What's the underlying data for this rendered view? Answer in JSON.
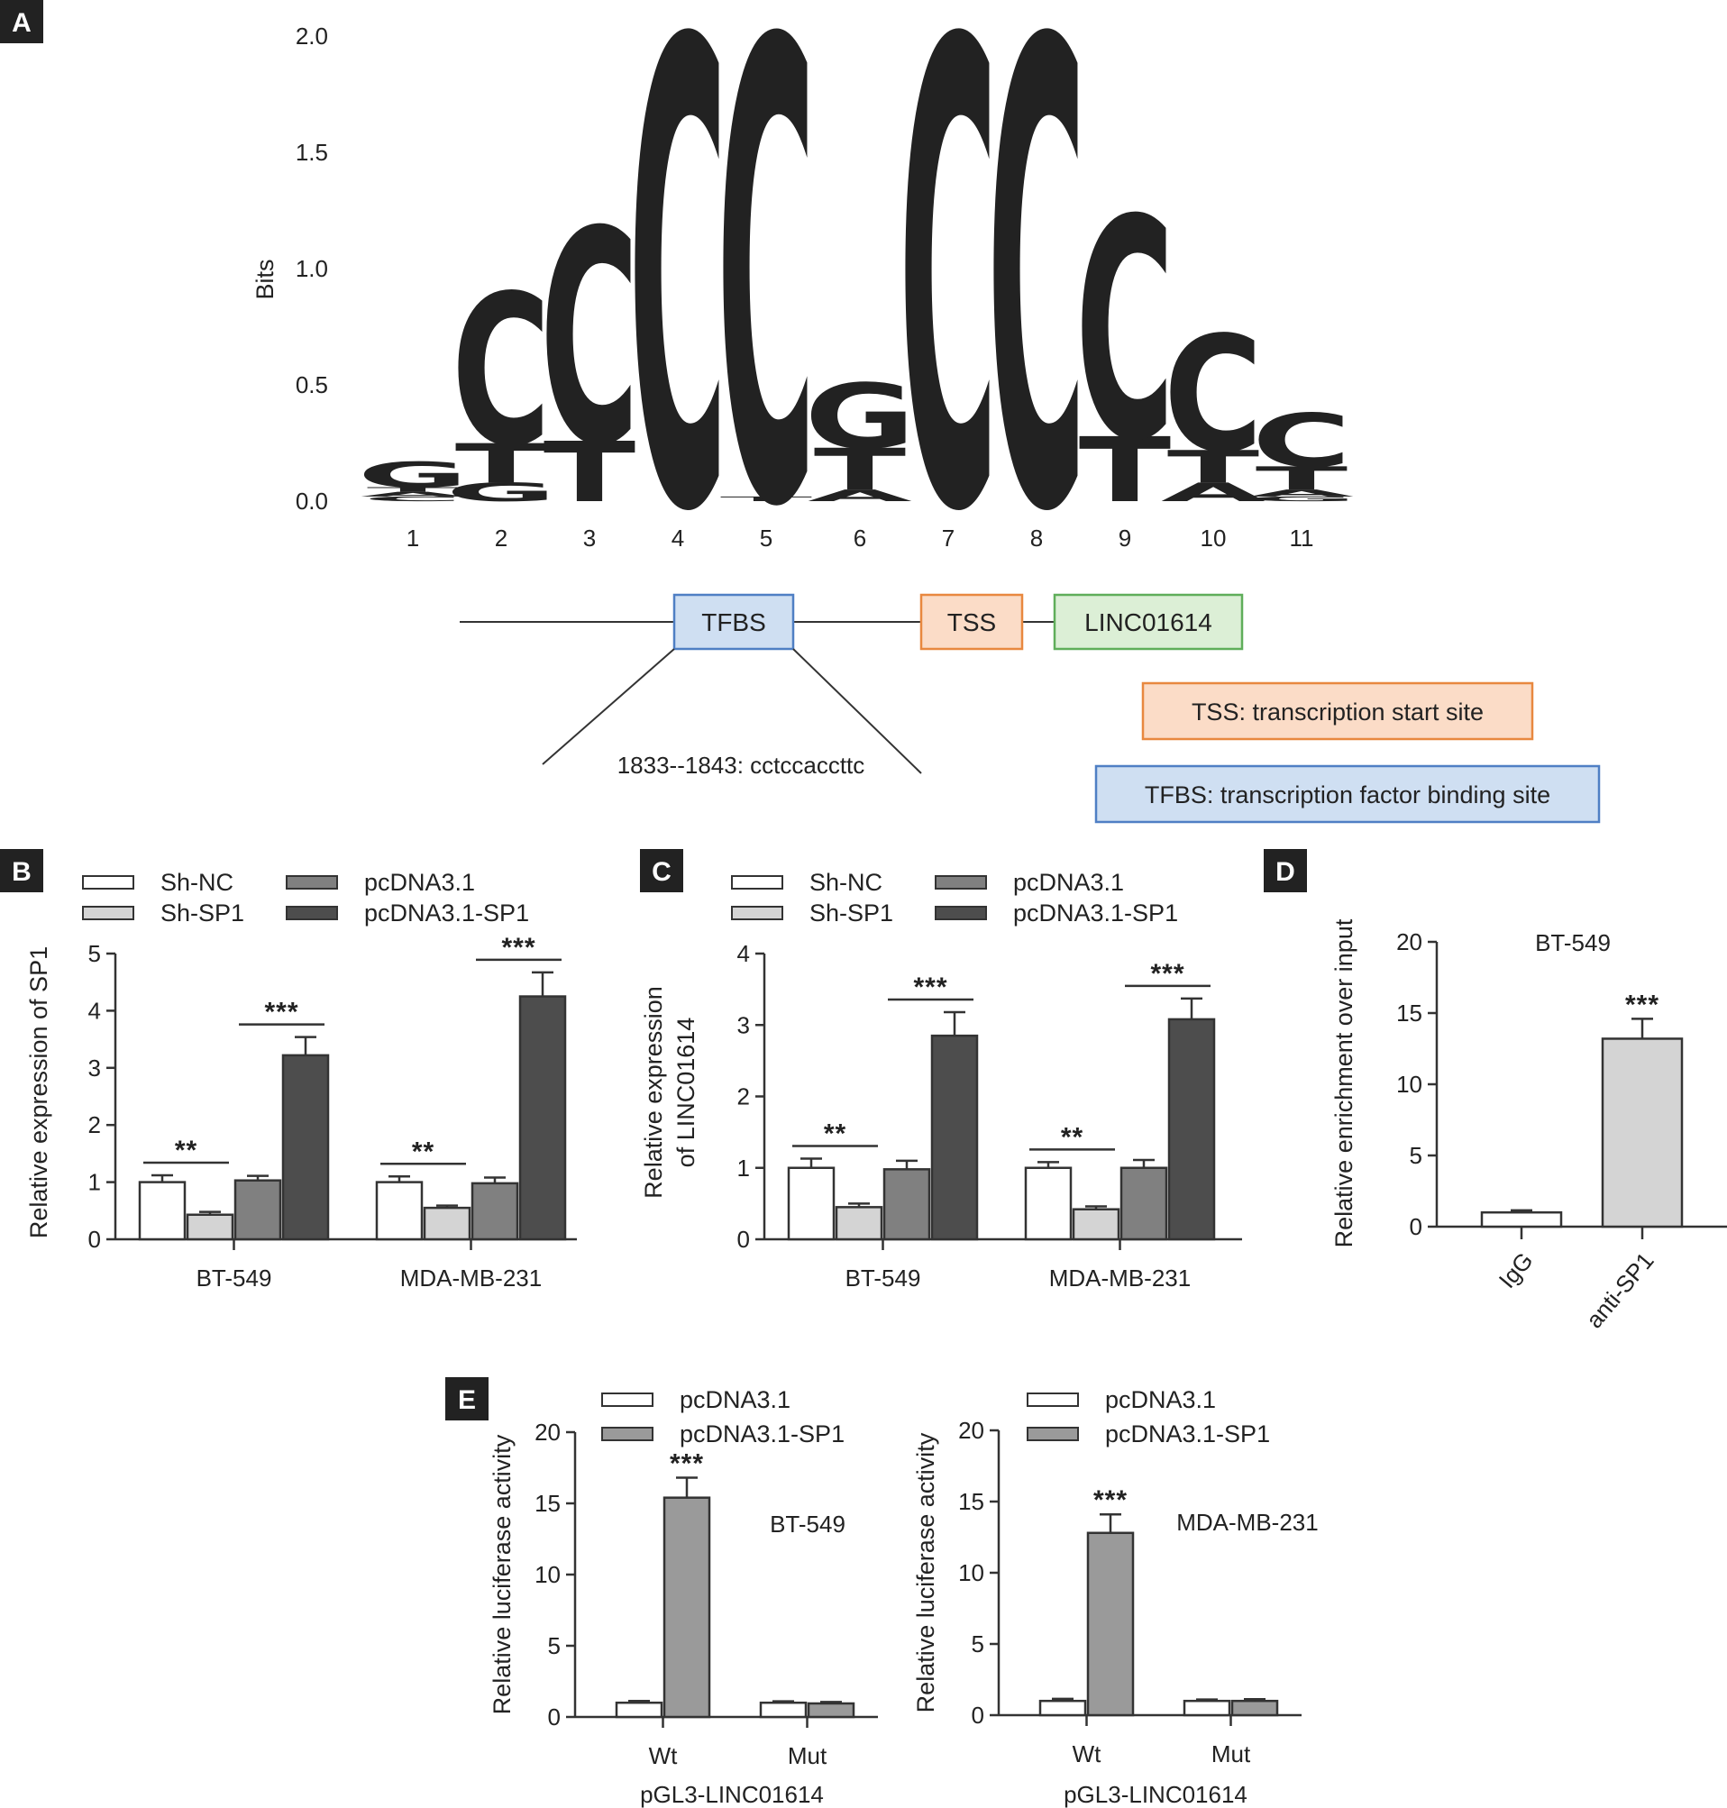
{
  "panels": {
    "A": {
      "label": "A"
    },
    "B": {
      "label": "B"
    },
    "C": {
      "label": "C"
    },
    "D": {
      "label": "D"
    },
    "E": {
      "label": "E"
    }
  },
  "motif": {
    "ylabel": "Bits",
    "yticks": [
      "0.0",
      "0.5",
      "1.0",
      "1.5",
      "2.0"
    ],
    "ylim": [
      0,
      2
    ],
    "positions": [
      "1",
      "2",
      "3",
      "4",
      "5",
      "6",
      "7",
      "8",
      "9",
      "10",
      "11"
    ],
    "colors": {
      "C": "#2f6fb5",
      "G": "#f2a531",
      "T": "#d9232e",
      "A": "#3aa66a"
    },
    "columns": [
      [
        {
          "base": "C",
          "bits": 0.02
        },
        {
          "base": "A",
          "bits": 0.02
        },
        {
          "base": "T",
          "bits": 0.02
        },
        {
          "base": "G",
          "bits": 0.11
        }
      ],
      [
        {
          "base": "G",
          "bits": 0.08
        },
        {
          "base": "T",
          "bits": 0.17
        },
        {
          "base": "C",
          "bits": 0.65
        }
      ],
      [
        {
          "base": "T",
          "bits": 0.26
        },
        {
          "base": "C",
          "bits": 0.92
        }
      ],
      [
        {
          "base": "C",
          "bits": 2.0
        }
      ],
      [
        {
          "base": "T",
          "bits": 0.02
        },
        {
          "base": "C",
          "bits": 1.98
        }
      ],
      [
        {
          "base": "A",
          "bits": 0.05
        },
        {
          "base": "T",
          "bits": 0.18
        },
        {
          "base": "G",
          "bits": 0.28
        }
      ],
      [
        {
          "base": "C",
          "bits": 2.0
        }
      ],
      [
        {
          "base": "C",
          "bits": 2.0
        }
      ],
      [
        {
          "base": "T",
          "bits": 0.28
        },
        {
          "base": "C",
          "bits": 0.95
        }
      ],
      [
        {
          "base": "A",
          "bits": 0.08
        },
        {
          "base": "T",
          "bits": 0.14
        },
        {
          "base": "C",
          "bits": 0.5
        }
      ],
      [
        {
          "base": "G",
          "bits": 0.02
        },
        {
          "base": "A",
          "bits": 0.03
        },
        {
          "base": "T",
          "bits": 0.1
        },
        {
          "base": "C",
          "bits": 0.23
        }
      ]
    ]
  },
  "diagram": {
    "tfbs": "TFBS",
    "tss": "TSS",
    "gene": "LINC01614",
    "site": "1833--1843: cctccaccttc",
    "legend_tss": "TSS:  transcription  start site",
    "legend_tfbs": "TFBS: transcription  factor binding  site",
    "colors": {
      "tfbs_fill": "#cfdff2",
      "tfbs_stroke": "#4f7fc4",
      "tss_fill": "#fbdcc7",
      "tss_stroke": "#e8883f",
      "gene_fill": "#dcefd6",
      "gene_stroke": "#5fae5a"
    }
  },
  "chart_data": [
    {
      "id": "B",
      "type": "bar",
      "ylabel": "Relative expression of SP1",
      "ylim": [
        0,
        5
      ],
      "yticks": [
        "0",
        "1",
        "2",
        "3",
        "4",
        "5"
      ],
      "legend": [
        "Sh-NC",
        "Sh-SP1",
        "pcDNA3.1",
        "pcDNA3.1-SP1"
      ],
      "colors": [
        "#ffffff",
        "#d4d4d4",
        "#808080",
        "#4d4d4d"
      ],
      "groups": [
        {
          "name": "BT-549",
          "values": [
            1.0,
            0.43,
            1.03,
            3.22
          ],
          "errors": [
            0.12,
            0.05,
            0.08,
            0.32
          ]
        },
        {
          "name": "MDA-MB-231",
          "values": [
            1.0,
            0.55,
            0.98,
            4.25
          ],
          "errors": [
            0.1,
            0.04,
            0.1,
            0.42
          ]
        }
      ],
      "significance": [
        {
          "group": 0,
          "pair": [
            0,
            1
          ],
          "label": "**"
        },
        {
          "group": 0,
          "pair": [
            2,
            3
          ],
          "label": "***"
        },
        {
          "group": 1,
          "pair": [
            0,
            1
          ],
          "label": "**"
        },
        {
          "group": 1,
          "pair": [
            2,
            3
          ],
          "label": "***"
        }
      ]
    },
    {
      "id": "C",
      "type": "bar",
      "ylabel": "Relative expression",
      "ylabel2": "of LINC01614",
      "ylim": [
        0,
        4
      ],
      "yticks": [
        "0",
        "1",
        "2",
        "3",
        "4"
      ],
      "legend": [
        "Sh-NC",
        "Sh-SP1",
        "pcDNA3.1",
        "pcDNA3.1-SP1"
      ],
      "colors": [
        "#ffffff",
        "#d4d4d4",
        "#808080",
        "#4d4d4d"
      ],
      "groups": [
        {
          "name": "BT-549",
          "values": [
            1.0,
            0.45,
            0.98,
            2.85
          ],
          "errors": [
            0.13,
            0.05,
            0.12,
            0.33
          ]
        },
        {
          "name": "MDA-MB-231",
          "values": [
            1.0,
            0.42,
            1.0,
            3.08
          ],
          "errors": [
            0.08,
            0.04,
            0.11,
            0.29
          ]
        }
      ],
      "significance": [
        {
          "group": 0,
          "pair": [
            0,
            1
          ],
          "label": "**"
        },
        {
          "group": 0,
          "pair": [
            2,
            3
          ],
          "label": "***"
        },
        {
          "group": 1,
          "pair": [
            0,
            1
          ],
          "label": "**"
        },
        {
          "group": 1,
          "pair": [
            2,
            3
          ],
          "label": "***"
        }
      ]
    },
    {
      "id": "D",
      "type": "bar",
      "title": "BT-549",
      "ylabel": "Relative enrichment over input",
      "ylim": [
        0,
        20
      ],
      "yticks": [
        "0",
        "5",
        "10",
        "15",
        "20"
      ],
      "categories": [
        "IgG",
        "anti-SP1"
      ],
      "values": [
        1.0,
        13.2
      ],
      "errors": [
        0.15,
        1.4
      ],
      "colors": [
        "#ffffff",
        "#d4d4d4"
      ],
      "significance": [
        {
          "bar": 1,
          "label": "***"
        }
      ]
    },
    {
      "id": "E1",
      "type": "bar",
      "title": "BT-549",
      "ylabel": "Relative luciferase activity",
      "xlabel": "pGL3-LINC01614",
      "ylim": [
        0,
        20
      ],
      "yticks": [
        "0",
        "5",
        "10",
        "15",
        "20"
      ],
      "legend": [
        "pcDNA3.1",
        "pcDNA3.1-SP1"
      ],
      "colors": [
        "#ffffff",
        "#9a9a9a"
      ],
      "groups": [
        {
          "name": "Wt",
          "values": [
            1.0,
            15.4
          ],
          "errors": [
            0.12,
            1.4
          ]
        },
        {
          "name": "Mut",
          "values": [
            1.0,
            0.95
          ],
          "errors": [
            0.1,
            0.1
          ]
        }
      ],
      "significance": [
        {
          "group": 0,
          "bar": 1,
          "label": "***"
        }
      ]
    },
    {
      "id": "E2",
      "type": "bar",
      "title": "MDA-MB-231",
      "ylabel": "Relative luciferase activity",
      "xlabel": "pGL3-LINC01614",
      "ylim": [
        0,
        20
      ],
      "yticks": [
        "0",
        "5",
        "10",
        "15",
        "20"
      ],
      "legend": [
        "pcDNA3.1",
        "pcDNA3.1-SP1"
      ],
      "colors": [
        "#ffffff",
        "#9a9a9a"
      ],
      "groups": [
        {
          "name": "Wt",
          "values": [
            1.0,
            12.8
          ],
          "errors": [
            0.15,
            1.3
          ]
        },
        {
          "name": "Mut",
          "values": [
            1.0,
            1.0
          ],
          "errors": [
            0.1,
            0.12
          ]
        }
      ],
      "significance": [
        {
          "group": 0,
          "bar": 1,
          "label": "***"
        }
      ]
    }
  ]
}
